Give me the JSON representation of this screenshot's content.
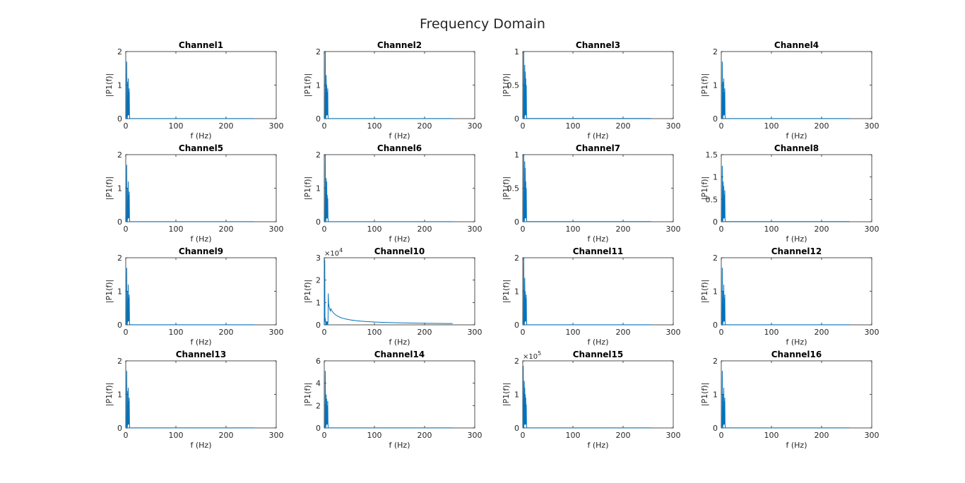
{
  "colors": {
    "line": "#0072BD",
    "axis": "#262626",
    "background": "#ffffff"
  },
  "chart_data": {
    "type": "line",
    "title": "Frequency Domain",
    "xlabel": "f (Hz)",
    "ylabel": "|P1(f)|",
    "xlim": [
      0,
      300
    ],
    "xticks": [
      0,
      100,
      200,
      300
    ],
    "xtick_labels": [
      "0",
      "100",
      "200",
      "300"
    ],
    "subplots": [
      {
        "title": "Channel1",
        "ylim": [
          0,
          2
        ],
        "yticks": [
          0,
          1,
          2
        ],
        "ytick_labels": [
          "0",
          "1",
          "2"
        ],
        "exponent": null,
        "peaks": [
          [
            2,
            1.7
          ],
          [
            4,
            1.1
          ],
          [
            5,
            1.2
          ],
          [
            6,
            0.8
          ],
          [
            7,
            0.9
          ]
        ],
        "decay": 0,
        "tail": 0.003
      },
      {
        "title": "Channel2",
        "ylim": [
          0,
          2
        ],
        "yticks": [
          0,
          1,
          2
        ],
        "ytick_labels": [
          "0",
          "1",
          "2"
        ],
        "exponent": null,
        "peaks": [
          [
            2,
            2.0
          ],
          [
            4,
            1.3
          ],
          [
            5,
            1.0
          ],
          [
            6,
            0.8
          ],
          [
            7,
            0.9
          ]
        ],
        "decay": 0,
        "tail": 0.003
      },
      {
        "title": "Channel3",
        "ylim": [
          0,
          1
        ],
        "yticks": [
          0,
          0.5,
          1
        ],
        "ytick_labels": [
          "0",
          "0.5",
          "1"
        ],
        "exponent": null,
        "peaks": [
          [
            2,
            1.0
          ],
          [
            4,
            0.8
          ],
          [
            5,
            0.7
          ],
          [
            6,
            0.6
          ],
          [
            7,
            0.5
          ]
        ],
        "decay": 0,
        "tail": 0.002
      },
      {
        "title": "Channel4",
        "ylim": [
          0,
          2
        ],
        "yticks": [
          0,
          1,
          2
        ],
        "ytick_labels": [
          "0",
          "1",
          "2"
        ],
        "exponent": null,
        "peaks": [
          [
            2,
            1.7
          ],
          [
            4,
            1.1
          ],
          [
            5,
            1.2
          ],
          [
            6,
            0.8
          ],
          [
            7,
            0.9
          ]
        ],
        "decay": 0,
        "tail": 0.003
      },
      {
        "title": "Channel5",
        "ylim": [
          0,
          2
        ],
        "yticks": [
          0,
          1,
          2
        ],
        "ytick_labels": [
          "0",
          "1",
          "2"
        ],
        "exponent": null,
        "peaks": [
          [
            2,
            1.7
          ],
          [
            4,
            1.0
          ],
          [
            5,
            1.2
          ],
          [
            6,
            0.8
          ],
          [
            7,
            0.9
          ]
        ],
        "decay": 0,
        "tail": 0.003
      },
      {
        "title": "Channel6",
        "ylim": [
          0,
          2
        ],
        "yticks": [
          0,
          1,
          2
        ],
        "ytick_labels": [
          "0",
          "1",
          "2"
        ],
        "exponent": null,
        "peaks": [
          [
            2,
            2.0
          ],
          [
            4,
            1.3
          ],
          [
            5,
            1.2
          ],
          [
            6,
            0.8
          ],
          [
            7,
            0.7
          ]
        ],
        "decay": 0,
        "tail": 0.003
      },
      {
        "title": "Channel7",
        "ylim": [
          0,
          1
        ],
        "yticks": [
          0,
          0.5,
          1
        ],
        "ytick_labels": [
          "0",
          "0.5",
          "1"
        ],
        "exponent": null,
        "peaks": [
          [
            2,
            1.0
          ],
          [
            4,
            0.9
          ],
          [
            5,
            0.8
          ],
          [
            6,
            0.6
          ],
          [
            7,
            0.5
          ]
        ],
        "decay": 0,
        "tail": 0.002
      },
      {
        "title": "Channel8",
        "ylim": [
          0,
          1.5
        ],
        "yticks": [
          0,
          0.5,
          1,
          1.5
        ],
        "ytick_labels": [
          "0",
          "0.5",
          "1",
          "1.5"
        ],
        "exponent": null,
        "peaks": [
          [
            2,
            1.25
          ],
          [
            4,
            0.9
          ],
          [
            5,
            0.8
          ],
          [
            6,
            0.6
          ],
          [
            7,
            0.7
          ]
        ],
        "decay": 0,
        "tail": 0.003
      },
      {
        "title": "Channel9",
        "ylim": [
          0,
          2
        ],
        "yticks": [
          0,
          1,
          2
        ],
        "ytick_labels": [
          "0",
          "1",
          "2"
        ],
        "exponent": null,
        "peaks": [
          [
            2,
            1.7
          ],
          [
            4,
            1.0
          ],
          [
            5,
            1.2
          ],
          [
            6,
            0.8
          ],
          [
            7,
            0.9
          ]
        ],
        "decay": 0,
        "tail": 0.003
      },
      {
        "title": "Channel10",
        "ylim": [
          0,
          3
        ],
        "yticks": [
          0,
          1,
          2,
          3
        ],
        "ytick_labels": [
          "0",
          "1",
          "2",
          "3"
        ],
        "exponent": "4",
        "peaks": [
          [
            1,
            2.9
          ],
          [
            2,
            0.3
          ],
          [
            8,
            1.4
          ]
        ],
        "decay": 1.4,
        "tail": 0.04
      },
      {
        "title": "Channel11",
        "ylim": [
          0,
          2
        ],
        "yticks": [
          0,
          1,
          2
        ],
        "ytick_labels": [
          "0",
          "1",
          "2"
        ],
        "exponent": null,
        "peaks": [
          [
            2,
            2.0
          ],
          [
            4,
            1.4
          ],
          [
            5,
            1.0
          ],
          [
            6,
            0.8
          ],
          [
            7,
            0.9
          ]
        ],
        "decay": 0,
        "tail": 0.003
      },
      {
        "title": "Channel12",
        "ylim": [
          0,
          2
        ],
        "yticks": [
          0,
          1,
          2
        ],
        "ytick_labels": [
          "0",
          "1",
          "2"
        ],
        "exponent": null,
        "peaks": [
          [
            2,
            1.7
          ],
          [
            4,
            1.0
          ],
          [
            5,
            1.2
          ],
          [
            6,
            0.8
          ],
          [
            7,
            0.9
          ]
        ],
        "decay": 0,
        "tail": 0.003
      },
      {
        "title": "Channel13",
        "ylim": [
          0,
          2
        ],
        "yticks": [
          0,
          1,
          2
        ],
        "ytick_labels": [
          "0",
          "1",
          "2"
        ],
        "exponent": null,
        "peaks": [
          [
            2,
            1.7
          ],
          [
            4,
            1.1
          ],
          [
            5,
            1.2
          ],
          [
            6,
            0.8
          ],
          [
            7,
            0.9
          ]
        ],
        "decay": 0,
        "tail": 0.003
      },
      {
        "title": "Channel14",
        "ylim": [
          0,
          6
        ],
        "yticks": [
          0,
          2,
          4,
          6
        ],
        "ytick_labels": [
          "0",
          "2",
          "4",
          "6"
        ],
        "exponent": null,
        "peaks": [
          [
            2,
            5.1
          ],
          [
            4,
            3.0
          ],
          [
            5,
            2.6
          ],
          [
            6,
            2.0
          ],
          [
            7,
            2.4
          ]
        ],
        "decay": 0,
        "tail": 0.008
      },
      {
        "title": "Channel15",
        "ylim": [
          0,
          2
        ],
        "yticks": [
          0,
          1,
          2
        ],
        "ytick_labels": [
          "0",
          "1",
          "2"
        ],
        "exponent": "5",
        "peaks": [
          [
            1,
            1.85
          ],
          [
            3,
            1.4
          ],
          [
            4,
            1.2
          ],
          [
            5,
            1.0
          ],
          [
            6,
            0.9
          ],
          [
            7,
            0.7
          ]
        ],
        "decay": 0,
        "tail": 0.003
      },
      {
        "title": "Channel16",
        "ylim": [
          0,
          2
        ],
        "yticks": [
          0,
          1,
          2
        ],
        "ytick_labels": [
          "0",
          "1",
          "2"
        ],
        "exponent": null,
        "peaks": [
          [
            2,
            1.7
          ],
          [
            4,
            1.0
          ],
          [
            5,
            1.2
          ],
          [
            6,
            0.8
          ],
          [
            7,
            0.9
          ]
        ],
        "decay": 0,
        "tail": 0.003
      }
    ],
    "x_max_data": 256
  }
}
